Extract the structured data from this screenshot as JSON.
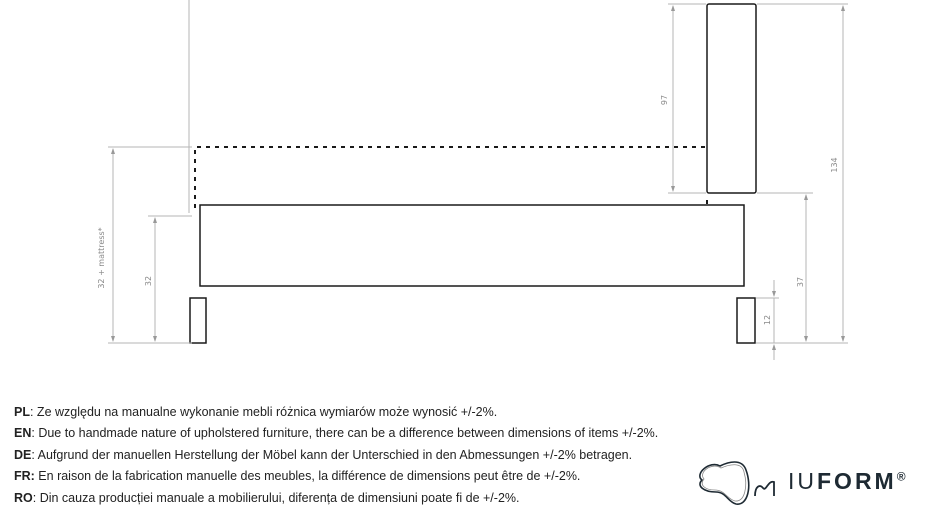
{
  "dimensions": {
    "left_total": "32 + mattress*",
    "left_frame": "32",
    "headboard": "97",
    "total_height": "134",
    "headboard_bottom": "37",
    "leg": "12"
  },
  "notes": [
    {
      "lang": "PL",
      "text": ": Ze względu na manualne wykonanie mebli różnica wymiarów może wynosić +/-2%."
    },
    {
      "lang": "EN",
      "text": ": Due to handmade nature of upholstered furniture, there can be a difference between dimensions of items +/-2%."
    },
    {
      "lang": "DE",
      "text": ": Aufgrund der manuellen Herstellung der Möbel kann der Unterschied in den Abmessungen +/-2% betragen."
    },
    {
      "lang": "FR:",
      "text": " En raison de la fabrication manuelle des meubles, la différence de dimensions peut être de +/-2%."
    },
    {
      "lang": "RO",
      "text": ": Din cauza producției manuale a mobilierului, diferența de dimensiuni poate fi de +/-2%."
    }
  ],
  "logo": {
    "light": "IU",
    "bold": "FORM",
    "mark": "®"
  },
  "colors": {
    "line": "#1a1a1a",
    "dimension": "#b5b5b5",
    "logo": "#1e2a33"
  }
}
